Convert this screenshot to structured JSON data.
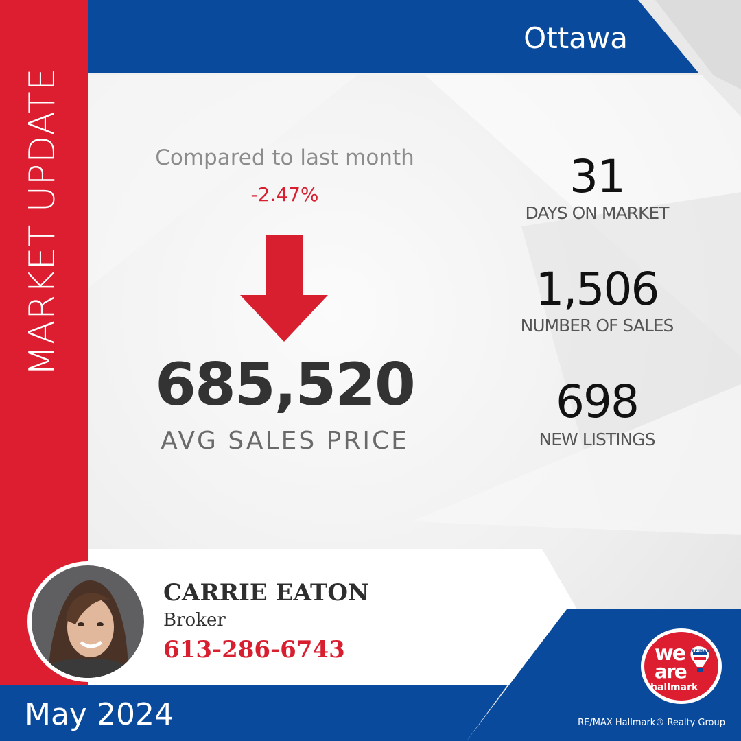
{
  "header": {
    "side_title": "MARKET UPDATE",
    "city": "Ottawa"
  },
  "comparison": {
    "label": "Compared to last month",
    "change": "-2.47%",
    "direction_icon": "arrow-down-icon"
  },
  "price": {
    "value": "685,520",
    "label": "AVG SALES PRICE"
  },
  "stats": [
    {
      "value": "31",
      "label": "DAYS ON MARKET"
    },
    {
      "value": "1,506",
      "label": "NUMBER OF SALES"
    },
    {
      "value": "698",
      "label": "NEW LISTINGS"
    }
  ],
  "agent": {
    "name": "CARRIE EATON",
    "title": "Broker",
    "phone": "613-286-6743"
  },
  "footer": {
    "date": "May 2024",
    "company": "RE/MAX Hallmark® Realty Group"
  },
  "logo": {
    "line1": "we",
    "line2": "are",
    "line3": "hallmark",
    "badge": "RE/MAX"
  },
  "colors": {
    "brand_blue": "#0a4a9c",
    "brand_red": "#d71f30",
    "text_dark": "#333333",
    "text_gray": "#8c8c8c"
  }
}
